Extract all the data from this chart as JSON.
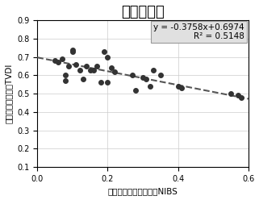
{
  "title": "江淮平原区",
  "xlabel": "归一化叶绿素荧光指数NIBS",
  "ylabel": "温度植被干旱指数TVDI",
  "equation": "y = -0.3758x+0.6974",
  "r2": "R² = 0.5148",
  "slope": -0.3758,
  "intercept": 0.6974,
  "xlim": [
    0,
    0.6
  ],
  "ylim": [
    0.1,
    0.9
  ],
  "xticks": [
    0,
    0.2,
    0.4,
    0.6
  ],
  "yticks": [
    0.1,
    0.2,
    0.3,
    0.4,
    0.5,
    0.6,
    0.7,
    0.8,
    0.9
  ],
  "scatter_x": [
    0.05,
    0.06,
    0.07,
    0.08,
    0.08,
    0.09,
    0.1,
    0.1,
    0.11,
    0.12,
    0.13,
    0.14,
    0.15,
    0.16,
    0.17,
    0.18,
    0.19,
    0.2,
    0.2,
    0.21,
    0.22,
    0.27,
    0.28,
    0.3,
    0.31,
    0.32,
    0.33,
    0.35,
    0.4,
    0.41,
    0.55,
    0.57,
    0.58
  ],
  "scatter_y": [
    0.68,
    0.67,
    0.69,
    0.6,
    0.57,
    0.65,
    0.74,
    0.73,
    0.66,
    0.63,
    0.58,
    0.65,
    0.63,
    0.63,
    0.65,
    0.56,
    0.73,
    0.7,
    0.56,
    0.64,
    0.62,
    0.6,
    0.52,
    0.59,
    0.58,
    0.54,
    0.63,
    0.6,
    0.54,
    0.53,
    0.5,
    0.49,
    0.48
  ],
  "dot_color": "#333333",
  "line_color": "#555555",
  "background_color": "#ffffff",
  "title_fontsize": 13,
  "label_fontsize": 7.5,
  "tick_fontsize": 7,
  "annotation_fontsize": 7.5
}
